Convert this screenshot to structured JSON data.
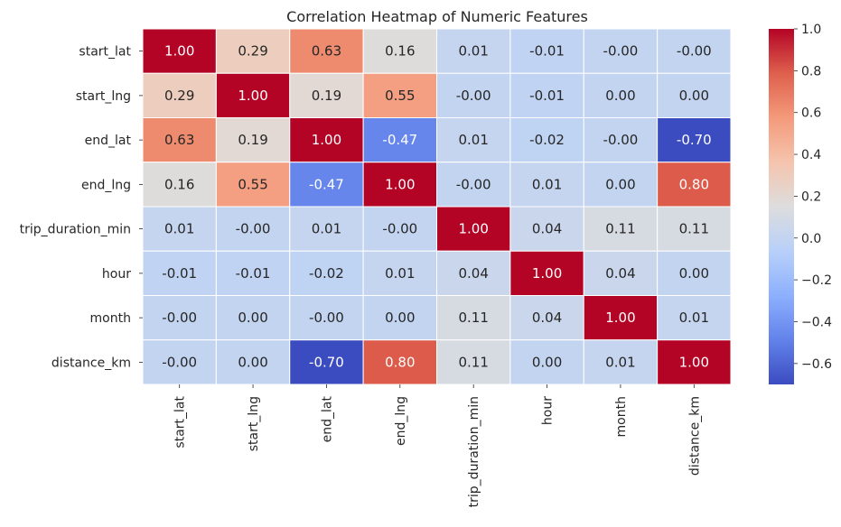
{
  "chart_data": {
    "type": "heatmap",
    "title": "Correlation Heatmap of Numeric Features",
    "row_labels": [
      "start_lat",
      "start_lng",
      "end_lat",
      "end_lng",
      "trip_duration_min",
      "hour",
      "month",
      "distance_km"
    ],
    "col_labels": [
      "start_lat",
      "start_lng",
      "end_lat",
      "end_lng",
      "trip_duration_min",
      "hour",
      "month",
      "distance_km"
    ],
    "values": [
      [
        1.0,
        0.29,
        0.63,
        0.16,
        0.01,
        -0.01,
        -0.0,
        -0.0
      ],
      [
        0.29,
        1.0,
        0.19,
        0.55,
        -0.0,
        -0.01,
        0.0,
        0.0
      ],
      [
        0.63,
        0.19,
        1.0,
        -0.47,
        0.01,
        -0.02,
        -0.0,
        -0.7
      ],
      [
        0.16,
        0.55,
        -0.47,
        1.0,
        -0.0,
        0.01,
        0.0,
        0.8
      ],
      [
        0.01,
        -0.0,
        0.01,
        -0.0,
        1.0,
        0.04,
        0.11,
        0.11
      ],
      [
        -0.01,
        -0.01,
        -0.02,
        0.01,
        0.04,
        1.0,
        0.04,
        0.0
      ],
      [
        -0.0,
        0.0,
        -0.0,
        0.0,
        0.11,
        0.04,
        1.0,
        0.01
      ],
      [
        -0.0,
        0.0,
        -0.7,
        0.8,
        0.11,
        0.0,
        0.01,
        1.0
      ]
    ],
    "annotation_format": "0.00",
    "colormap": "coolwarm",
    "color_range": [
      -0.7,
      1.0
    ],
    "colorbar_ticks": [
      1.0,
      0.8,
      0.6,
      0.4,
      0.2,
      0.0,
      -0.2,
      -0.4,
      -0.6
    ],
    "colorbar_tick_labels": [
      "1.0",
      "0.8",
      "0.6",
      "0.4",
      "0.2",
      "0.0",
      "−0.2",
      "−0.4",
      "−0.6"
    ],
    "cell_border_color": "#ffffff",
    "legend_position": "right"
  }
}
